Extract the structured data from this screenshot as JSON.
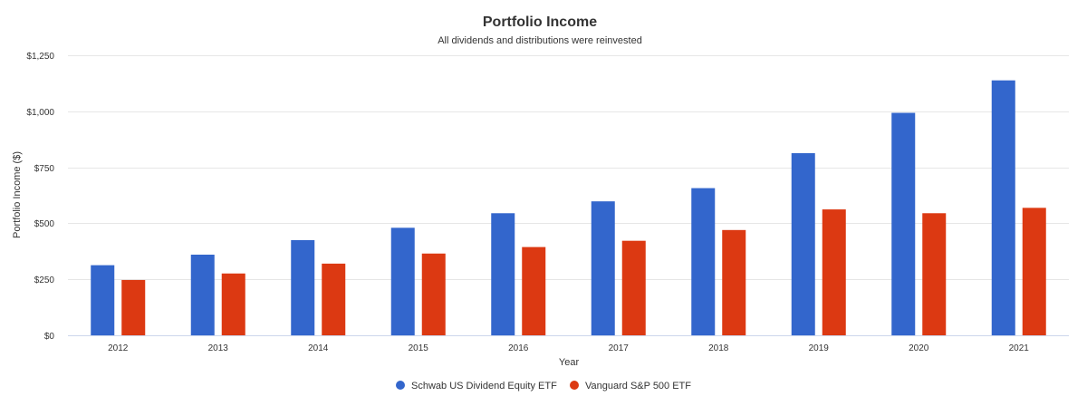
{
  "chart_data": {
    "type": "bar",
    "title": "Portfolio Income",
    "subtitle": "All dividends and distributions were reinvested",
    "xlabel": "Year",
    "ylabel": "Portfolio Income ($)",
    "categories": [
      "2012",
      "2013",
      "2014",
      "2015",
      "2016",
      "2017",
      "2018",
      "2019",
      "2020",
      "2021"
    ],
    "series": [
      {
        "name": "Schwab US Dividend Equity ETF",
        "color": "#3366cc",
        "values": [
          313,
          360,
          425,
          480,
          545,
          598,
          657,
          813,
          993,
          1138
        ]
      },
      {
        "name": "Vanguard S&P 500 ETF",
        "color": "#dc3912",
        "values": [
          247,
          276,
          320,
          365,
          394,
          422,
          470,
          562,
          545,
          569
        ]
      }
    ],
    "ylim": [
      0,
      1250
    ],
    "yticks": [
      0,
      250,
      500,
      750,
      1000,
      1250
    ],
    "ytick_labels": [
      "$0",
      "$250",
      "$500",
      "$750",
      "$1,000",
      "$1,250"
    ],
    "grid": true,
    "legend_position": "bottom-center"
  }
}
